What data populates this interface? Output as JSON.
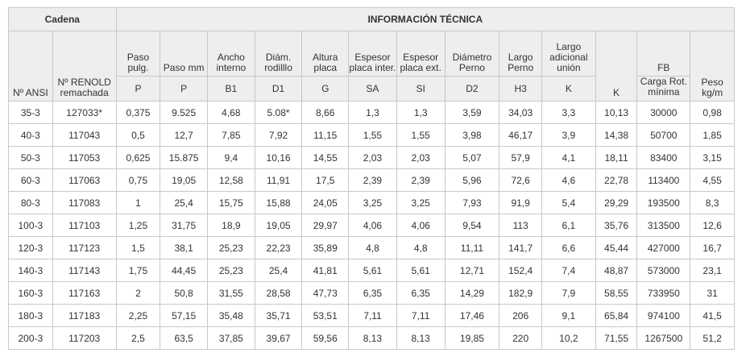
{
  "table": {
    "group_cadena": "Cadena",
    "group_info": "INFORMACIÓN TÉCNICA",
    "headers": {
      "ansi": "Nº ANSI",
      "renold": "Nº RENOLD remachada",
      "paso_pulg": "Paso pulg.",
      "paso_mm": "Paso mm",
      "ancho": "Ancho interno",
      "diam_rodillo": "Diám. rodilllo",
      "altura": "Altura placa",
      "espesor_inter": "Espesor placa inter.",
      "espesor_ext": "Espesor placa ext.",
      "diam_perno": "Diámetro Perno",
      "largo_perno": "Largo Perno",
      "largo_adicional": "Largo adicional unión",
      "fb": "FB",
      "carga": "Carga Rot. mínima",
      "peso": "Peso kg/m"
    },
    "symbols": {
      "p1": "P",
      "p2": "P",
      "b1": "B1",
      "d1": "D1",
      "g": "G",
      "sa": "SA",
      "si": "SI",
      "d2": "D2",
      "h3": "H3",
      "k1": "K",
      "k2": "K"
    },
    "rows": [
      [
        "35-3",
        "127033*",
        "0,375",
        "9.525",
        "4,68",
        "5.08*",
        "8,66",
        "1,3",
        "1,3",
        "3,59",
        "34,03",
        "3,3",
        "10,13",
        "30000",
        "0,98"
      ],
      [
        "40-3",
        "117043",
        "0,5",
        "12,7",
        "7,85",
        "7,92",
        "11,15",
        "1,55",
        "1,55",
        "3,98",
        "46,17",
        "3,9",
        "14,38",
        "50700",
        "1,85"
      ],
      [
        "50-3",
        "117053",
        "0,625",
        "15.875",
        "9,4",
        "10,16",
        "14,55",
        "2,03",
        "2,03",
        "5,07",
        "57,9",
        "4,1",
        "18,11",
        "83400",
        "3,15"
      ],
      [
        "60-3",
        "117063",
        "0,75",
        "19,05",
        "12,58",
        "11,91",
        "17,5",
        "2,39",
        "2,39",
        "5,96",
        "72,6",
        "4,6",
        "22,78",
        "113400",
        "4,55"
      ],
      [
        "80-3",
        "117083",
        "1",
        "25,4",
        "15,75",
        "15,88",
        "24,05",
        "3,25",
        "3,25",
        "7,93",
        "91,9",
        "5,4",
        "29,29",
        "193500",
        "8,3"
      ],
      [
        "100-3",
        "117103",
        "1,25",
        "31,75",
        "18,9",
        "19,05",
        "29,97",
        "4,06",
        "4,06",
        "9,54",
        "113",
        "6,1",
        "35,76",
        "313500",
        "12,6"
      ],
      [
        "120-3",
        "117123",
        "1,5",
        "38,1",
        "25,23",
        "22,23",
        "35,89",
        "4,8",
        "4,8",
        "11,11",
        "141,7",
        "6,6",
        "45,44",
        "427000",
        "16,7"
      ],
      [
        "140-3",
        "117143",
        "1,75",
        "44,45",
        "25,23",
        "25,4",
        "41,81",
        "5,61",
        "5,61",
        "12,71",
        "152,4",
        "7,4",
        "48,87",
        "573000",
        "23,1"
      ],
      [
        "160-3",
        "117163",
        "2",
        "50,8",
        "31,55",
        "28,58",
        "47,73",
        "6,35",
        "6,35",
        "14,29",
        "182,9",
        "7,9",
        "58,55",
        "733950",
        "31"
      ],
      [
        "180-3",
        "117183",
        "2,25",
        "57,15",
        "35,48",
        "35,71",
        "53,51",
        "7,11",
        "7,11",
        "17,46",
        "206",
        "9,1",
        "65,84",
        "974100",
        "41,5"
      ],
      [
        "200-3",
        "117203",
        "2,5",
        "63,5",
        "37,85",
        "39,67",
        "59,56",
        "8,13",
        "8,13",
        "19,85",
        "220",
        "10,2",
        "71,55",
        "1267500",
        "51,2"
      ]
    ]
  }
}
